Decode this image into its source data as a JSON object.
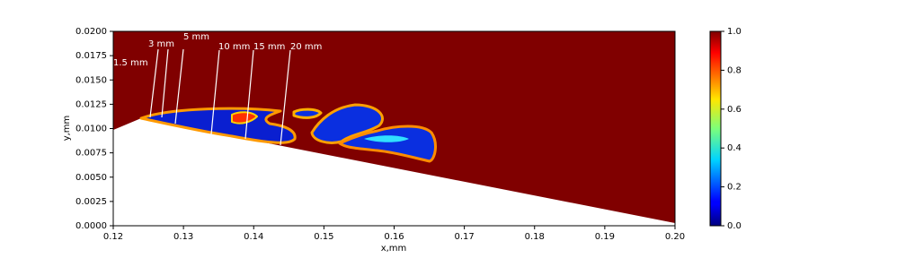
{
  "chart_data": {
    "type": "contour",
    "xlabel": "x,mm",
    "ylabel": "y,mm",
    "xlim": [
      0.12,
      0.2
    ],
    "xticks": [
      0.12,
      0.13,
      0.14,
      0.15,
      0.16,
      0.17,
      0.18,
      0.19,
      {
        "value": 0.2,
        "label": "0.20"
      }
    ],
    "ylim": [
      0,
      0.02
    ],
    "yticks": [
      {
        "value": 0,
        "label": "0.0000"
      },
      0.0025,
      {
        "value": 0.005,
        "label": "0.0050"
      },
      0.0075,
      {
        "value": 0.01,
        "label": "0.0100"
      },
      0.0125,
      {
        "value": 0.015,
        "label": "0.0150"
      },
      0.0175,
      {
        "value": 0.02,
        "label": "0.0200"
      }
    ],
    "clim": [
      0,
      1
    ],
    "cticks": [
      {
        "value": 0,
        "label": "0.0"
      },
      0.2,
      0.4,
      0.6,
      0.8,
      {
        "value": 1,
        "label": "1.0"
      }
    ],
    "colormap": "jet",
    "annotations": [
      "1.5 mm",
      "3 mm",
      "5 mm",
      "10 mm",
      "15 mm",
      "20 mm"
    ]
  }
}
